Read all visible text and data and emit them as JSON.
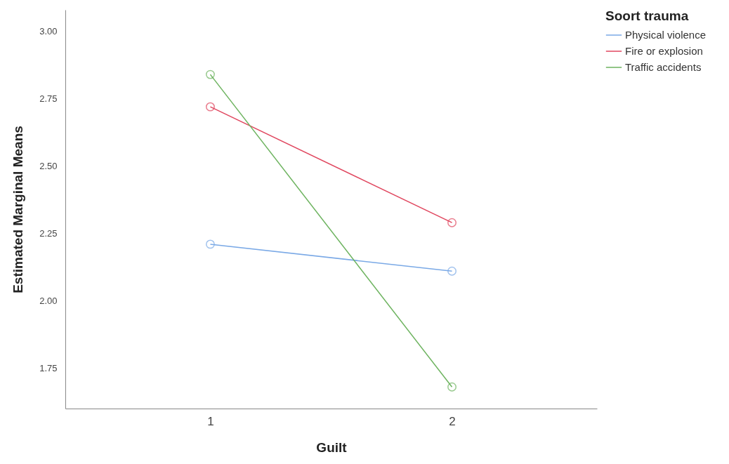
{
  "chart_data": {
    "type": "line",
    "xlabel": "Guilt",
    "ylabel": "Estimated Marginal Means",
    "legend_title": "Soort trauma",
    "categories": [
      "1",
      "2"
    ],
    "series": [
      {
        "name": "Physical violence",
        "color": "#7aa9e6",
        "values": [
          2.21,
          2.11
        ]
      },
      {
        "name": "Fire or explosion",
        "color": "#e0475f",
        "values": [
          2.72,
          2.29
        ]
      },
      {
        "name": "Traffic accidents",
        "color": "#6db35f",
        "values": [
          2.84,
          1.68
        ]
      }
    ],
    "ylim": [
      1.6,
      3.08
    ],
    "yticks": [
      {
        "value": 1.75,
        "label": "1.75"
      },
      {
        "value": 2,
        "label": "2.00"
      },
      {
        "value": 2.25,
        "label": "2.25"
      },
      {
        "value": 2.5,
        "label": "2.50"
      },
      {
        "value": 2.75,
        "label": "2.75"
      },
      {
        "value": 3,
        "label": "3.00"
      }
    ],
    "grid": false,
    "legend": "top right",
    "marker": "circle",
    "line_style": "solid"
  }
}
